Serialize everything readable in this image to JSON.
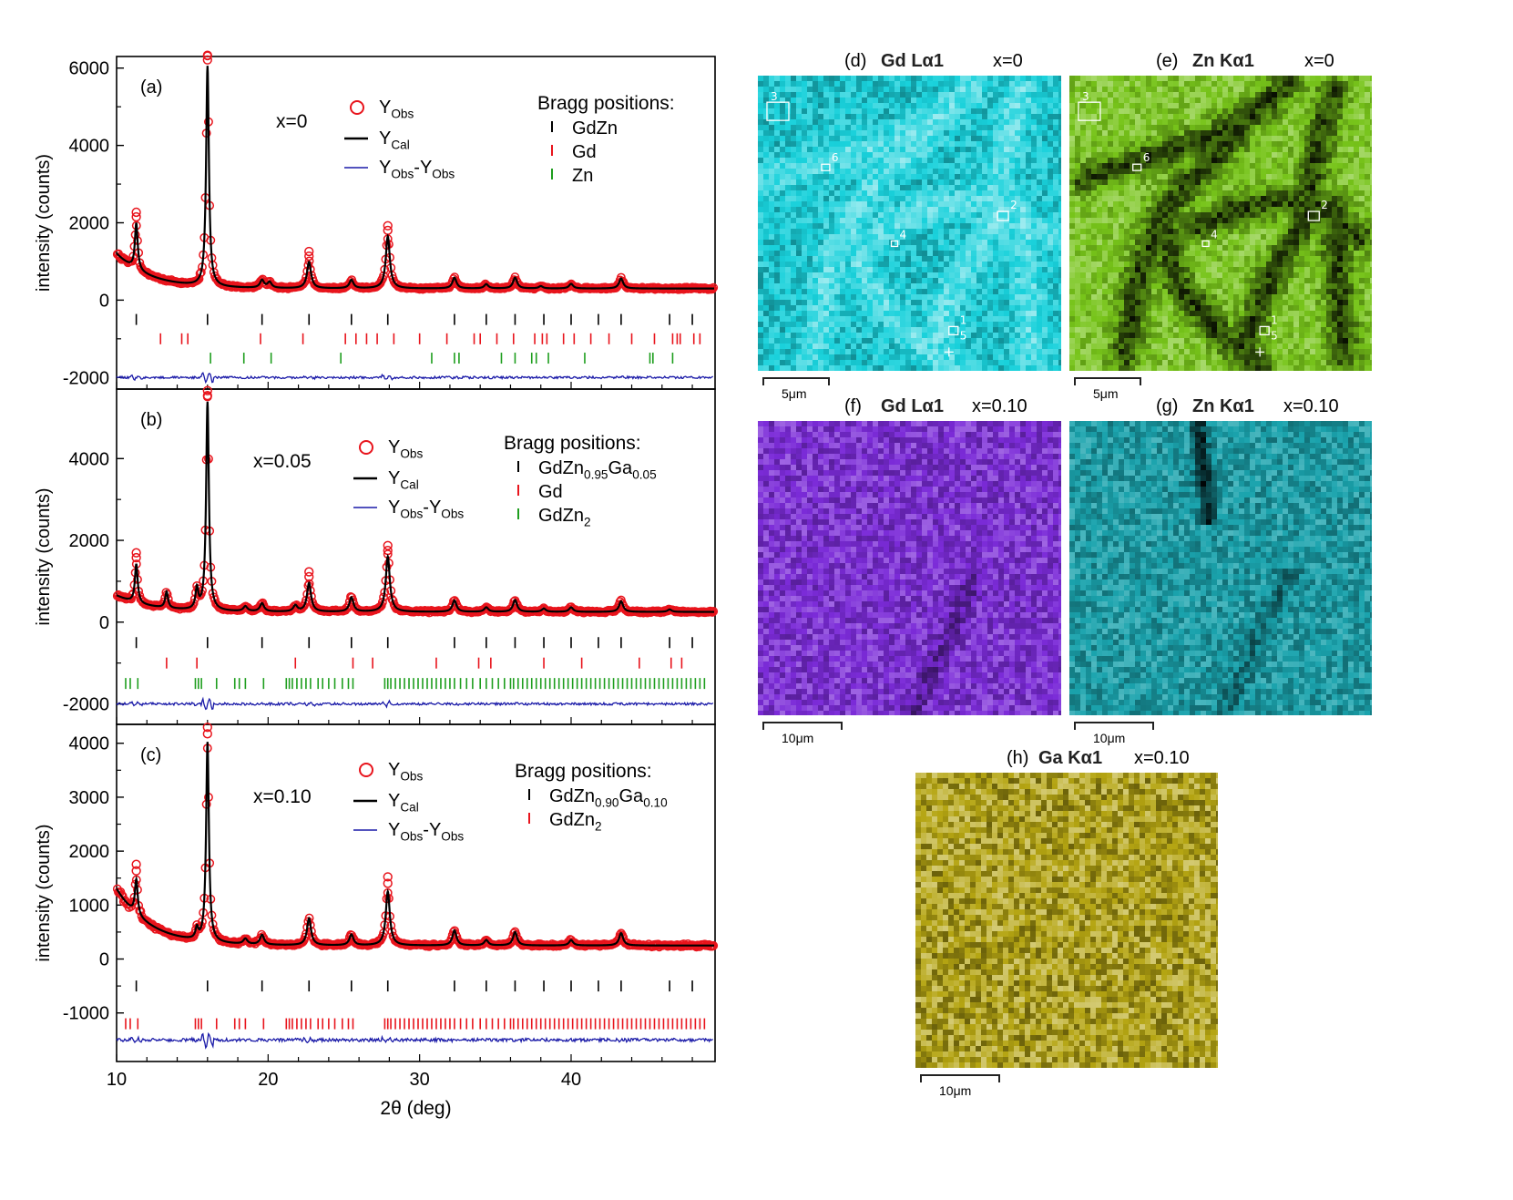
{
  "chart_data": [
    {
      "type": "scatter",
      "panel": "(a)",
      "label": "x=0",
      "xlabel": "",
      "ylabel": "intensity (counts)",
      "xlim": [
        10,
        49.5
      ],
      "ylim": [
        -2300,
        6300
      ],
      "yticks": [
        -2000,
        0,
        2000,
        4000,
        6000
      ],
      "ytick_labels": [
        "-2000",
        "0",
        "2000",
        "4000",
        "6000"
      ],
      "background": 300,
      "start_excess": 900,
      "peaks": [
        [
          11.3,
          1200
        ],
        [
          16.0,
          5700
        ],
        [
          19.6,
          200
        ],
        [
          20.1,
          150
        ],
        [
          22.7,
          680
        ],
        [
          25.5,
          220
        ],
        [
          27.9,
          1350
        ],
        [
          32.3,
          280
        ],
        [
          34.4,
          110
        ],
        [
          36.3,
          280
        ],
        [
          38.0,
          60
        ],
        [
          40.0,
          120
        ],
        [
          43.3,
          260
        ]
      ],
      "diff_baseline": -2000,
      "legend": {
        "obs": "Y",
        "obs_sub": "Obs",
        "cal": "Y",
        "cal_sub": "Cal",
        "diff": "Y",
        "diff_sub1": "Obs",
        "diff_mid": "-Y",
        "diff_sub2": "Obs"
      },
      "bragg_title": "Bragg positions:",
      "bragg": [
        {
          "name": "GdZn",
          "color": "#000000",
          "y": -500,
          "positions": [
            11.3,
            16.0,
            19.6,
            22.7,
            25.5,
            27.9,
            32.3,
            34.4,
            36.3,
            38.2,
            40.0,
            41.8,
            43.3,
            46.5,
            48.0
          ]
        },
        {
          "name": "Gd",
          "color": "#e8141c",
          "y": -1000,
          "positions": [
            12.9,
            14.3,
            14.7,
            19.5,
            22.3,
            25.1,
            25.8,
            26.5,
            27.2,
            28.3,
            30.0,
            31.8,
            33.6,
            34.0,
            35.1,
            36.2,
            37.6,
            38.1,
            38.4,
            39.5,
            40.2,
            41.3,
            42.5,
            44.0,
            45.5,
            46.7,
            47.0,
            47.2,
            48.1,
            48.5
          ]
        },
        {
          "name": "Zn",
          "color": "#1e9e1e",
          "y": -1500,
          "positions": [
            16.2,
            18.4,
            20.2,
            24.8,
            30.8,
            32.3,
            32.6,
            35.4,
            36.3,
            37.4,
            37.7,
            38.5,
            40.9,
            45.2,
            45.4,
            46.7
          ]
        }
      ]
    },
    {
      "type": "scatter",
      "panel": "(b)",
      "label": "x=0.05",
      "xlabel": "",
      "ylabel": "intensity (counts)",
      "xlim": [
        10,
        49.5
      ],
      "ylim": [
        -2500,
        5700
      ],
      "yticks": [
        -2000,
        0,
        2000,
        4000
      ],
      "ytick_labels": [
        "-2000",
        "0",
        "2000",
        "4000"
      ],
      "background": 250,
      "start_excess": 400,
      "peaks": [
        [
          11.3,
          950
        ],
        [
          13.3,
          400
        ],
        [
          15.3,
          500
        ],
        [
          16.0,
          5100
        ],
        [
          18.5,
          120
        ],
        [
          19.6,
          200
        ],
        [
          21.8,
          150
        ],
        [
          22.7,
          700
        ],
        [
          25.5,
          350
        ],
        [
          27.9,
          1350
        ],
        [
          32.3,
          280
        ],
        [
          34.4,
          110
        ],
        [
          36.3,
          290
        ],
        [
          38.2,
          80
        ],
        [
          40.0,
          110
        ],
        [
          43.3,
          260
        ],
        [
          46.5,
          60
        ]
      ],
      "diff_baseline": -2000,
      "legend": {
        "obs": "Y",
        "obs_sub": "Obs",
        "cal": "Y",
        "cal_sub": "Cal",
        "diff": "Y",
        "diff_sub1": "Obs",
        "diff_mid": "-Y",
        "diff_sub2": "Obs"
      },
      "bragg_title": "Bragg positions:",
      "bragg": [
        {
          "name": "GdZn",
          "name_sub1": "0.95",
          "name_mid": "Ga",
          "name_sub2": "0.05",
          "color": "#000000",
          "y": -500,
          "positions": [
            11.3,
            16.0,
            19.6,
            22.7,
            25.5,
            27.9,
            32.3,
            34.4,
            36.3,
            38.2,
            40.0,
            41.8,
            43.3,
            46.5,
            48.0
          ]
        },
        {
          "name": "Gd",
          "color": "#e8141c",
          "y": -1000,
          "positions": [
            13.3,
            15.3,
            21.8,
            25.6,
            26.9,
            31.1,
            33.9,
            34.7,
            38.2,
            40.7,
            44.5,
            46.6,
            47.3
          ]
        },
        {
          "name": "GdZn",
          "name_sub1": "2",
          "color": "#1e9e1e",
          "y": -1500,
          "positions": [
            10.6,
            10.9,
            11.4,
            15.2,
            15.4,
            15.6,
            16.6,
            17.8,
            18.1,
            18.5,
            19.7,
            21.2,
            21.4,
            21.6,
            21.9,
            22.2,
            22.5,
            22.8,
            23.3,
            23.6,
            24.0,
            24.4,
            24.9,
            25.3,
            25.6,
            27.7,
            27.9,
            28.1,
            28.4,
            28.7,
            29.0,
            29.3,
            29.6,
            29.9,
            30.2,
            30.5,
            30.8,
            31.1,
            31.4,
            31.7,
            32.0,
            32.3,
            32.7,
            33.1,
            33.5,
            34.0,
            34.4,
            34.8,
            35.2,
            35.6,
            36.0,
            36.2,
            36.5,
            36.8,
            37.1,
            37.4,
            37.7,
            38.0,
            38.3,
            38.6,
            38.9,
            39.2,
            39.5,
            39.8,
            40.1,
            40.4,
            40.7,
            41.0,
            41.3,
            41.6,
            41.9,
            42.2,
            42.5,
            42.8,
            43.1,
            43.4,
            43.7,
            44.0,
            44.3,
            44.6,
            44.9,
            45.2,
            45.5,
            45.8,
            46.1,
            46.4,
            46.7,
            47.0,
            47.3,
            47.6,
            47.9,
            48.2,
            48.5,
            48.8
          ]
        }
      ]
    },
    {
      "type": "scatter",
      "panel": "(c)",
      "label": "x=0.10",
      "xlabel": "2θ (deg)",
      "ylabel": "intensity (counts)",
      "xlim": [
        10,
        49.5
      ],
      "xticks": [
        10,
        20,
        30,
        40
      ],
      "xtick_labels": [
        "10",
        "20",
        "30",
        "40"
      ],
      "ylim": [
        -1900,
        4350
      ],
      "yticks": [
        -1000,
        0,
        1000,
        2000,
        3000,
        4000
      ],
      "ytick_labels": [
        "-1000",
        "0",
        "1000",
        "2000",
        "3000",
        "4000"
      ],
      "background": 250,
      "start_excess": 1050,
      "peaks": [
        [
          11.3,
          650
        ],
        [
          15.3,
          200
        ],
        [
          16.0,
          3700
        ],
        [
          18.5,
          100
        ],
        [
          19.6,
          180
        ],
        [
          22.7,
          500
        ],
        [
          25.5,
          200
        ],
        [
          27.9,
          1000
        ],
        [
          32.3,
          280
        ],
        [
          34.4,
          100
        ],
        [
          36.3,
          250
        ],
        [
          40.0,
          100
        ],
        [
          43.3,
          230
        ]
      ],
      "diff_baseline": -1500,
      "legend": {
        "obs": "Y",
        "obs_sub": "Obs",
        "cal": "Y",
        "cal_sub": "Cal",
        "diff": "Y",
        "diff_sub1": "Obs",
        "diff_mid": "-Y",
        "diff_sub2": "Obs"
      },
      "bragg_title": "Bragg positions:",
      "bragg": [
        {
          "name": "GdZn",
          "name_sub1": "0.90",
          "name_mid": "Ga",
          "name_sub2": "0.10",
          "color": "#000000",
          "y": -500,
          "positions": [
            11.3,
            16.0,
            19.6,
            22.7,
            25.5,
            27.9,
            32.3,
            34.4,
            36.3,
            38.2,
            40.0,
            41.8,
            43.3,
            46.5,
            48.0
          ]
        },
        {
          "name": "GdZn",
          "name_sub1": "2",
          "color": "#e8141c",
          "y": -1200,
          "positions": [
            10.6,
            10.9,
            11.4,
            15.2,
            15.4,
            15.6,
            16.6,
            17.8,
            18.1,
            18.5,
            19.7,
            21.2,
            21.4,
            21.6,
            21.9,
            22.2,
            22.5,
            22.8,
            23.3,
            23.6,
            24.0,
            24.4,
            24.9,
            25.3,
            25.6,
            27.7,
            27.9,
            28.1,
            28.4,
            28.7,
            29.0,
            29.3,
            29.6,
            29.9,
            30.2,
            30.5,
            30.8,
            31.1,
            31.4,
            31.7,
            32.0,
            32.3,
            32.7,
            33.1,
            33.5,
            34.0,
            34.4,
            34.8,
            35.2,
            35.6,
            36.0,
            36.2,
            36.5,
            36.8,
            37.1,
            37.4,
            37.7,
            38.0,
            38.3,
            38.6,
            38.9,
            39.2,
            39.5,
            39.8,
            40.1,
            40.4,
            40.7,
            41.0,
            41.3,
            41.6,
            41.9,
            42.2,
            42.5,
            42.8,
            43.1,
            43.4,
            43.7,
            44.0,
            44.3,
            44.6,
            44.9,
            45.2,
            45.5,
            45.8,
            46.1,
            46.4,
            46.7,
            47.0,
            47.3,
            47.6,
            47.9,
            48.2,
            48.5,
            48.8
          ]
        }
      ]
    }
  ],
  "colors": {
    "observed": "#e8141c",
    "calculated": "#000000",
    "difference": "#1a1aa8"
  },
  "edx_maps": [
    {
      "id": "d",
      "label": "(d)",
      "title": "Gd Lα1",
      "condition": "x=0",
      "base_color": "#19d1db",
      "pattern": "network-light",
      "scale_bar": "5μm",
      "regions": [
        "1",
        "2",
        "3",
        "4",
        "5",
        "6"
      ]
    },
    {
      "id": "e",
      "label": "(e)",
      "title": "Zn Kα1",
      "condition": "x=0",
      "base_color": "#77c41a",
      "pattern": "network-dark",
      "scale_bar": "5μm",
      "regions": [
        "1",
        "2",
        "3",
        "4",
        "5",
        "6"
      ]
    },
    {
      "id": "f",
      "label": "(f)",
      "title": "Gd Lα1",
      "condition": "x=0.10",
      "base_color": "#7b2bd8",
      "pattern": "uniform",
      "scale_bar": "10μm"
    },
    {
      "id": "g",
      "label": "(g)",
      "title": "Zn Kα1",
      "condition": "x=0.10",
      "base_color": "#1aa3ad",
      "pattern": "streaks",
      "scale_bar": "10μm"
    },
    {
      "id": "h",
      "label": "(h)",
      "title": "Ga Kα1",
      "condition": "x=0.10",
      "base_color": "#b5a512",
      "pattern": "uniform",
      "scale_bar": "10μm"
    }
  ]
}
